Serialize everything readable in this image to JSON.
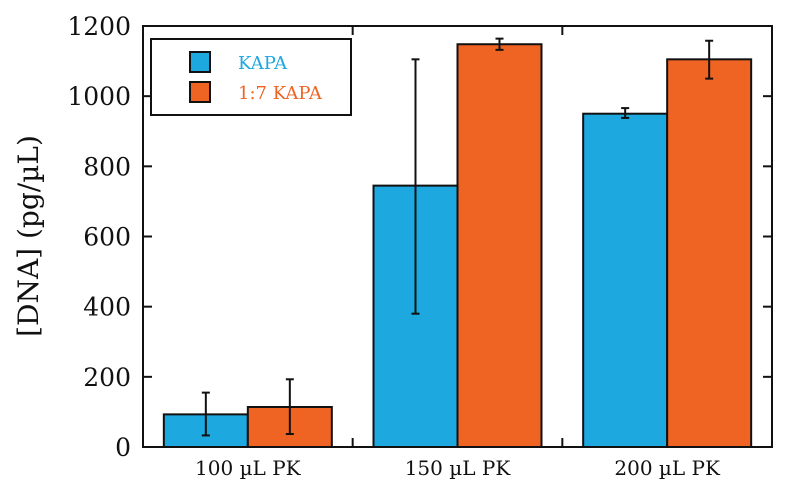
{
  "chart_data": {
    "type": "bar",
    "ylabel": "[DNA] (pg/µL)",
    "xlabel": "",
    "title": "",
    "ylim": [
      0,
      1200
    ],
    "yticks": [
      0,
      200,
      400,
      600,
      800,
      1000,
      1200
    ],
    "categories": [
      "100 µL PK",
      "150 µL PK",
      "200 µL PK"
    ],
    "series": [
      {
        "name": "KAPA",
        "color": "#1da8e0",
        "values": [
          93,
          745,
          950
        ],
        "error_low": [
          33,
          380,
          938
        ],
        "error_high": [
          155,
          1105,
          966
        ]
      },
      {
        "name": "1:7 KAPA",
        "color": "#ef6422",
        "values": [
          114,
          1148,
          1105
        ],
        "error_low": [
          37,
          1132,
          1050
        ],
        "error_high": [
          193,
          1164,
          1158
        ]
      }
    ],
    "legend": {
      "position": "top-left"
    },
    "grid": false
  }
}
